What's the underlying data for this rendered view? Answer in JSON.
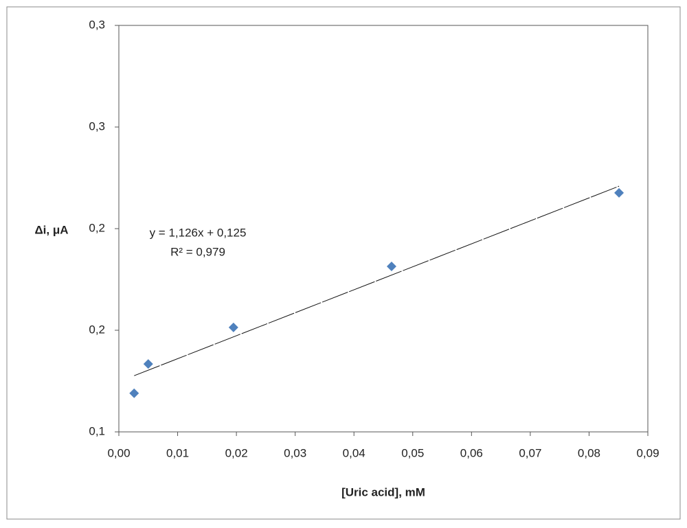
{
  "chart_data": {
    "type": "scatter",
    "x_label": "[Uric acid], mM",
    "y_label": "Δi, μA",
    "series": [
      {
        "color": "#4f81bd",
        "x": [
          0.0026,
          0.005,
          0.0195,
          0.0464,
          0.0851
        ],
        "values": [
          0.119,
          0.1334,
          0.1514,
          0.1814,
          0.2176
        ]
      }
    ],
    "xlim": [
      0,
      0.09
    ],
    "xticks": [
      {
        "value": 0,
        "label": "0,00"
      },
      {
        "value": 0.01,
        "label": "0,01"
      },
      {
        "value": 0.02,
        "label": "0,02"
      },
      {
        "value": 0.03,
        "label": "0,03"
      },
      {
        "value": 0.04,
        "label": "0,04"
      },
      {
        "value": 0.05,
        "label": "0,05"
      },
      {
        "value": 0.06,
        "label": "0,06"
      },
      {
        "value": 0.07,
        "label": "0,07"
      },
      {
        "value": 0.08,
        "label": "0,08"
      },
      {
        "value": 0.09,
        "label": "0,09"
      }
    ],
    "ylim": [
      0.1,
      0.3
    ],
    "yticks": [
      {
        "value": 0.1,
        "label": "0,1"
      },
      {
        "value": 0.15,
        "label": "0,2"
      },
      {
        "value": 0.2,
        "label": "0,2"
      },
      {
        "value": 0.25,
        "label": "0,3"
      },
      {
        "value": 0.3,
        "label": "0,3"
      }
    ],
    "annotations": [
      "y = 1,126x + 0,125",
      "R² = 0,979"
    ],
    "trendline": true,
    "grid": false
  }
}
